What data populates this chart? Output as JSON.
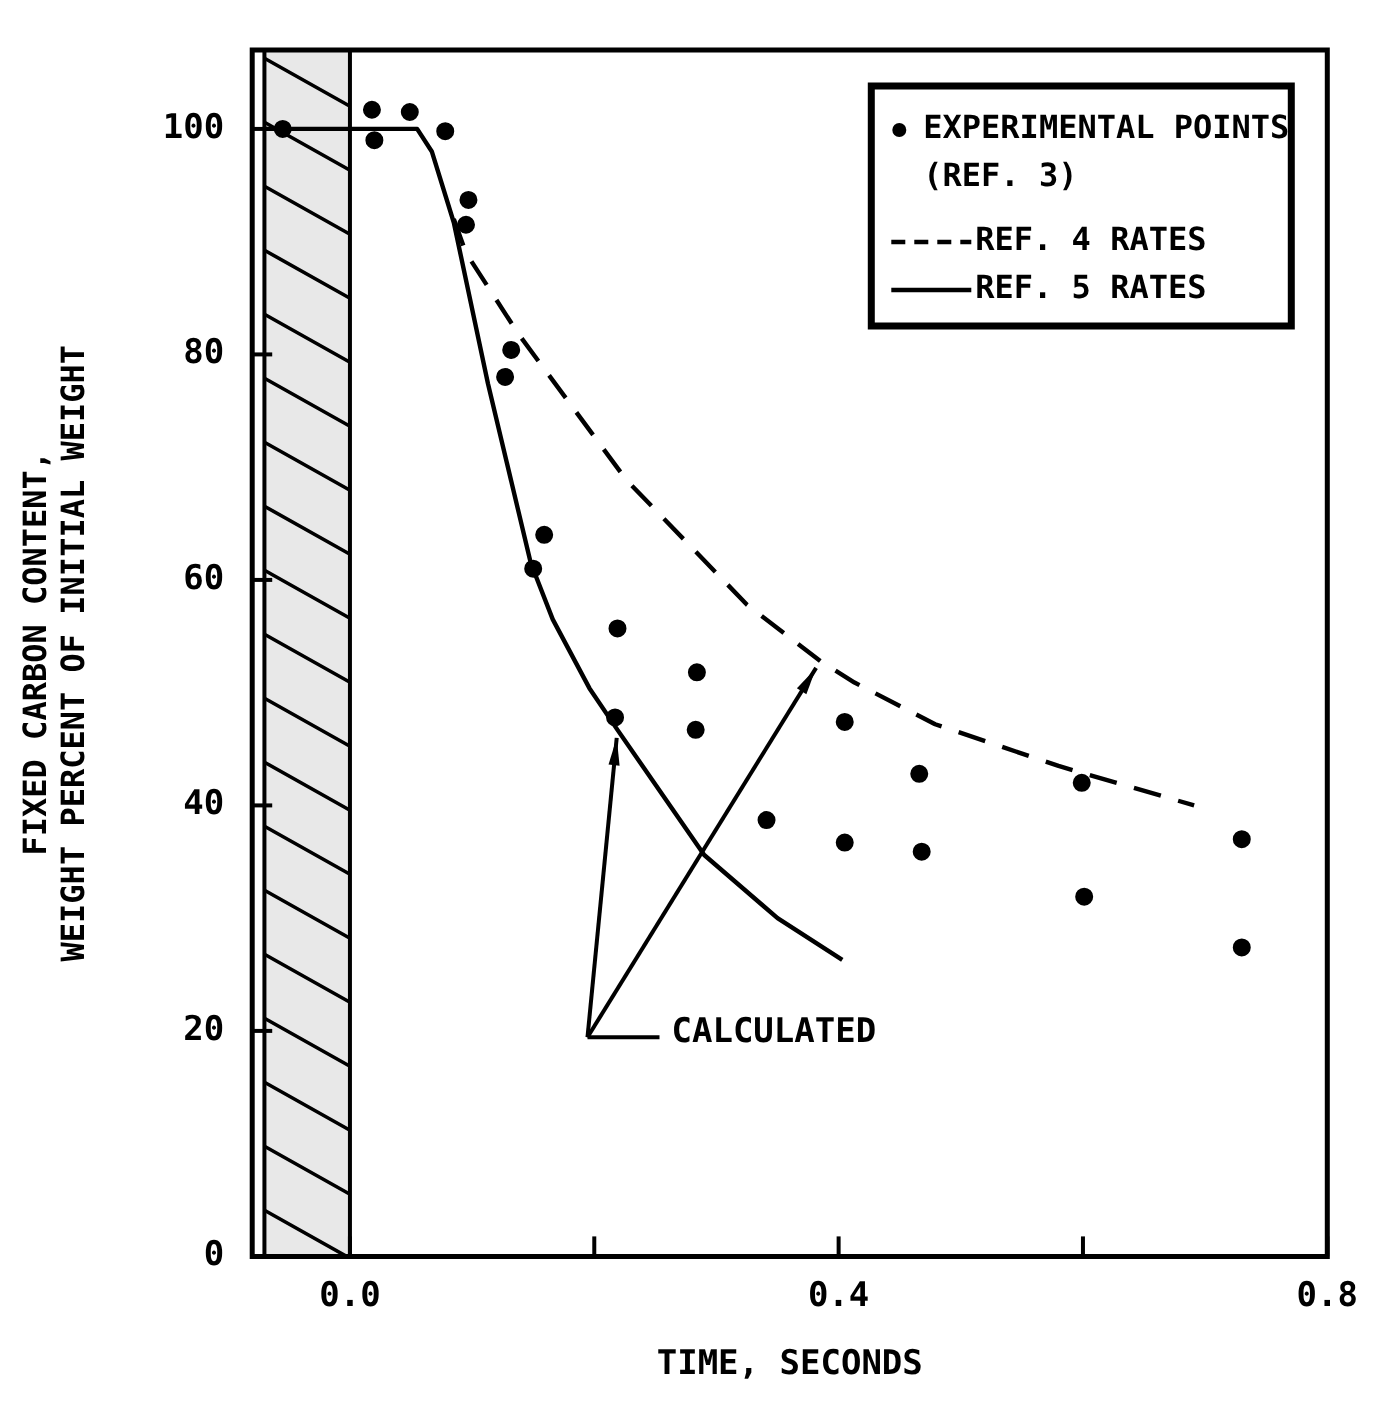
{
  "chart_data": {
    "type": "scatter",
    "xlabel": "TIME, SECONDS",
    "ylabel": "FIXED CARBON CONTENT, WEIGHT PERCENT OF INITIAL WEIGHT",
    "xlim": [
      -0.08,
      0.8
    ],
    "ylim": [
      0,
      107
    ],
    "xticks": [
      {
        "value": 0,
        "label": "0.0"
      },
      {
        "value": 0.2,
        "label": null
      },
      0.4,
      {
        "value": 0.6,
        "label": null
      },
      0.8
    ],
    "yticks": [
      0,
      20,
      40,
      60,
      80,
      100
    ],
    "grid": false,
    "legend": "top right",
    "marker": "circle",
    "series": [
      {
        "name": "EXPERIMENTAL POINTS (REF. 3)",
        "color": "#000000",
        "x": [
          -0.055,
          0.018,
          0.02,
          0.049,
          0.078,
          0.097,
          0.095,
          0.132,
          0.127,
          0.159,
          0.15,
          0.219,
          0.284,
          0.217,
          0.283,
          0.341,
          0.405,
          0.405,
          0.466,
          0.468,
          0.599,
          0.601,
          0.73,
          0.73
        ],
        "values": [
          100,
          101.7,
          99,
          101.5,
          99.8,
          93.7,
          91.5,
          80.4,
          78,
          64,
          61,
          55.7,
          51.8,
          47.8,
          46.7,
          38.7,
          47.4,
          36.7,
          42.8,
          35.9,
          42,
          31.9,
          37,
          27.4
        ]
      },
      {
        "name": "REF. 4 RATES",
        "type": "line",
        "line_style": "dashed",
        "marker": "none",
        "color": "#000000",
        "x": [
          0.085,
          0.095,
          0.138,
          0.226,
          0.325,
          0.385,
          0.413,
          0.479,
          0.58,
          0.691
        ],
        "values": [
          92,
          89,
          81.8,
          68.9,
          57.8,
          52.8,
          50.9,
          47.2,
          43.5,
          40
        ]
      },
      {
        "name": "REF. 5 RATES",
        "type": "line",
        "line_style": "solid",
        "marker": "none",
        "color": "#000000",
        "x": [
          -0.07,
          0.055,
          0.067,
          0.085,
          0.113,
          0.148,
          0.166,
          0.196,
          0.219,
          0.29,
          0.35,
          0.403
        ],
        "values": [
          100,
          100,
          98,
          91.7,
          77.4,
          61.5,
          56.5,
          50.4,
          46.7,
          35.6,
          30,
          26.3
        ]
      }
    ],
    "ref_lines": [
      {
        "axis": "x",
        "value": -0.07
      },
      {
        "axis": "x",
        "value": 0
      }
    ],
    "bands": [
      {
        "axis": "x",
        "from": -0.07,
        "to": 0,
        "color": "#e8e8e8"
      }
    ],
    "annotations": [
      "CALCULATED"
    ]
  }
}
